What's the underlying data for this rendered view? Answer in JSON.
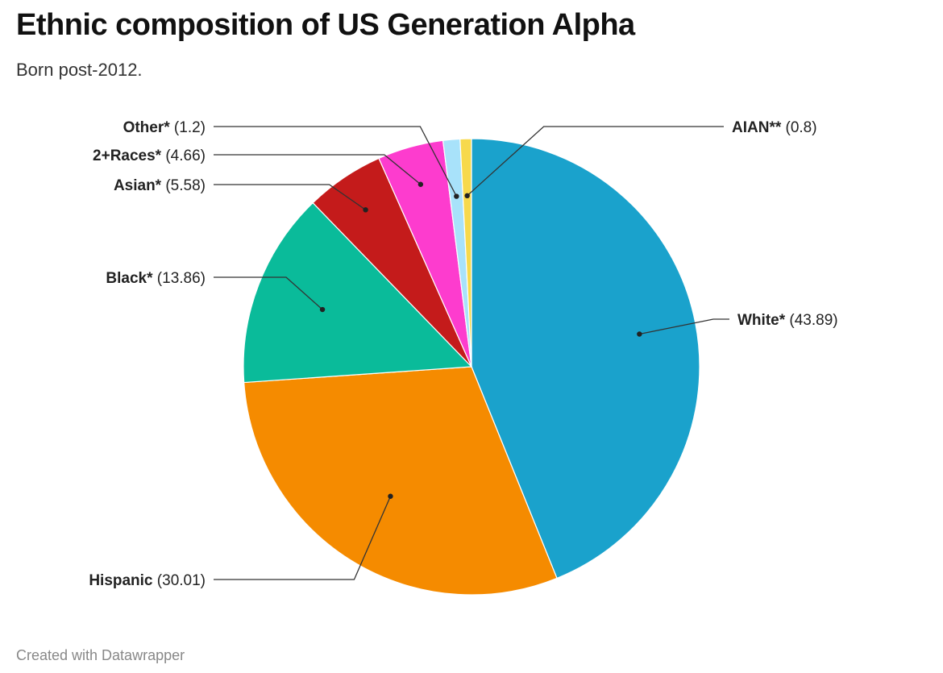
{
  "header": {
    "title": "Ethnic composition of US Generation Alpha",
    "subtitle": "Born post-2012."
  },
  "footer": {
    "credit": "Created with Datawrapper"
  },
  "chart_data": {
    "type": "pie",
    "title": "Ethnic composition of US Generation Alpha",
    "subtitle": "Born post-2012.",
    "slices": [
      {
        "name": "White*",
        "value": 43.89,
        "value_label": "(43.89)",
        "color": "#1aa2cc"
      },
      {
        "name": "Hispanic",
        "value": 30.01,
        "value_label": "(30.01)",
        "color": "#f58b00"
      },
      {
        "name": "Black*",
        "value": 13.86,
        "value_label": "(13.86)",
        "color": "#0abb9a"
      },
      {
        "name": "Asian*",
        "value": 5.58,
        "value_label": "(5.58)",
        "color": "#c41b1b"
      },
      {
        "name": "2+Races*",
        "value": 4.66,
        "value_label": "(4.66)",
        "color": "#fd3cce"
      },
      {
        "name": "Other*",
        "value": 1.2,
        "value_label": "(1.2)",
        "color": "#a8e2fa"
      },
      {
        "name": "AIAN**",
        "value": 0.8,
        "value_label": "(0.8)",
        "color": "#f7d94c"
      }
    ],
    "start_angle_deg": 0,
    "direction": "clockwise",
    "legend": "none",
    "labels": "outside with leader lines"
  }
}
